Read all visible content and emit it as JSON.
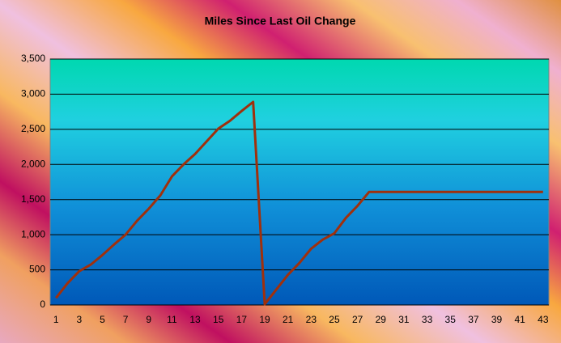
{
  "chart_data": {
    "type": "line",
    "title": "Miles Since Last Oil Change",
    "categories": [
      1,
      null,
      3,
      null,
      5,
      null,
      7,
      null,
      9,
      null,
      11,
      null,
      13,
      null,
      15,
      null,
      17,
      null,
      19,
      null,
      21,
      null,
      23,
      null,
      25,
      null,
      27,
      null,
      29,
      null,
      31,
      null,
      33,
      null,
      35,
      null,
      37,
      null,
      39,
      null,
      41,
      null,
      43
    ],
    "values": [
      100,
      310,
      480,
      575,
      710,
      860,
      1000,
      1200,
      1370,
      1560,
      1830,
      2000,
      2150,
      2330,
      2510,
      2620,
      2760,
      2890,
      10,
      220,
      430,
      600,
      800,
      930,
      1020,
      1240,
      1410,
      1610,
      1610,
      1610,
      1610,
      1610,
      1610,
      1610,
      1610,
      1610,
      1610,
      1610,
      1610,
      1610,
      1610,
      1610,
      1610
    ],
    "color": "#a0300c",
    "ylim": [
      0,
      3500
    ],
    "yticks": [
      0,
      500,
      {
        "value": 1000,
        "label": "1,000"
      },
      {
        "value": 1500,
        "label": "1,500"
      },
      {
        "value": 2000,
        "label": "2,000"
      },
      {
        "value": 2500,
        "label": "2,500"
      },
      {
        "value": 3000,
        "label": "3,000"
      },
      {
        "value": 3500,
        "label": "3,500"
      }
    ],
    "grid": true
  }
}
